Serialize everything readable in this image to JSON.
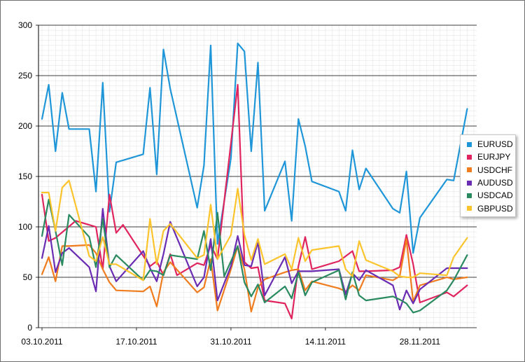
{
  "chart_data": {
    "type": "line",
    "title": "",
    "xlabel": "",
    "ylabel": "",
    "ylim": [
      0,
      300
    ],
    "yticks": [
      0,
      50,
      100,
      150,
      200,
      250,
      300
    ],
    "xticks": [
      "03.10.2011",
      "17.10.2011",
      "31.10.2011",
      "14.11.2011",
      "28.11.2011"
    ],
    "xrange": [
      "2011-10-03",
      "2011-12-06"
    ],
    "grid": true,
    "legend_position": "right",
    "series": [
      {
        "name": "EURUSD",
        "color": "#1f96d8",
        "points": [
          [
            "2011-10-03",
            207
          ],
          [
            "2011-10-04",
            241
          ],
          [
            "2011-10-05",
            175
          ],
          [
            "2011-10-06",
            233
          ],
          [
            "2011-10-07",
            197
          ],
          [
            "2011-10-10",
            197
          ],
          [
            "2011-10-11",
            135
          ],
          [
            "2011-10-12",
            243
          ],
          [
            "2011-10-13",
            115
          ],
          [
            "2011-10-14",
            164
          ],
          [
            "2011-10-18",
            172
          ],
          [
            "2011-10-19",
            238
          ],
          [
            "2011-10-20",
            152
          ],
          [
            "2011-10-21",
            276
          ],
          [
            "2011-10-22",
            237
          ],
          [
            "2011-10-26",
            119
          ],
          [
            "2011-10-27",
            161
          ],
          [
            "2011-10-28",
            280
          ],
          [
            "2011-10-29",
            83
          ],
          [
            "2011-10-31",
            168
          ],
          [
            "2011-11-01",
            282
          ],
          [
            "2011-11-02",
            274
          ],
          [
            "2011-11-03",
            175
          ],
          [
            "2011-11-04",
            263
          ],
          [
            "2011-11-05",
            116
          ],
          [
            "2011-11-08",
            165
          ],
          [
            "2011-11-09",
            106
          ],
          [
            "2011-11-10",
            207
          ],
          [
            "2011-11-11",
            180
          ],
          [
            "2011-11-12",
            145
          ],
          [
            "2011-11-16",
            135
          ],
          [
            "2011-11-17",
            116
          ],
          [
            "2011-11-18",
            176
          ],
          [
            "2011-11-19",
            137
          ],
          [
            "2011-11-20",
            158
          ],
          [
            "2011-11-24",
            118
          ],
          [
            "2011-11-25",
            114
          ],
          [
            "2011-11-26",
            155
          ],
          [
            "2011-11-27",
            74
          ],
          [
            "2011-11-28",
            109
          ],
          [
            "2011-12-02",
            147
          ],
          [
            "2011-12-03",
            146
          ],
          [
            "2011-12-05",
            217
          ]
        ]
      },
      {
        "name": "EURJPY",
        "color": "#e0245e",
        "points": [
          [
            "2011-10-03",
            132
          ],
          [
            "2011-10-04",
            86
          ],
          [
            "2011-10-05",
            89
          ],
          [
            "2011-10-08",
            106
          ],
          [
            "2011-10-11",
            100
          ],
          [
            "2011-10-12",
            58
          ],
          [
            "2011-10-13",
            132
          ],
          [
            "2011-10-14",
            94
          ],
          [
            "2011-10-15",
            102
          ],
          [
            "2011-10-19",
            61
          ],
          [
            "2011-10-20",
            66
          ],
          [
            "2011-10-21",
            52
          ],
          [
            "2011-10-22",
            73
          ],
          [
            "2011-10-23",
            52
          ],
          [
            "2011-10-26",
            64
          ],
          [
            "2011-10-27",
            62
          ],
          [
            "2011-10-28",
            82
          ],
          [
            "2011-10-29",
            68
          ],
          [
            "2011-11-01",
            241
          ],
          [
            "2011-11-02",
            65
          ],
          [
            "2011-11-03",
            59
          ],
          [
            "2011-11-04",
            60
          ],
          [
            "2011-11-05",
            27
          ],
          [
            "2011-11-08",
            24
          ],
          [
            "2011-11-09",
            9
          ],
          [
            "2011-11-10",
            61
          ],
          [
            "2011-11-11",
            90
          ],
          [
            "2011-11-12",
            58
          ],
          [
            "2011-11-16",
            66
          ],
          [
            "2011-11-18",
            76
          ],
          [
            "2011-11-19",
            56
          ],
          [
            "2011-11-20",
            56
          ],
          [
            "2011-11-24",
            57
          ],
          [
            "2011-11-25",
            60
          ],
          [
            "2011-11-26",
            92
          ],
          [
            "2011-11-27",
            63
          ],
          [
            "2011-11-28",
            25
          ],
          [
            "2011-12-02",
            35
          ],
          [
            "2011-12-03",
            31
          ],
          [
            "2011-12-05",
            42
          ]
        ]
      },
      {
        "name": "USDCHF",
        "color": "#f07c1e",
        "points": [
          [
            "2011-10-03",
            53
          ],
          [
            "2011-10-04",
            70
          ],
          [
            "2011-10-05",
            46
          ],
          [
            "2011-10-06",
            81
          ],
          [
            "2011-10-07",
            81
          ],
          [
            "2011-10-10",
            82
          ],
          [
            "2011-10-11",
            74
          ],
          [
            "2011-10-12",
            58
          ],
          [
            "2011-10-13",
            45
          ],
          [
            "2011-10-14",
            37
          ],
          [
            "2011-10-18",
            36
          ],
          [
            "2011-10-19",
            41
          ],
          [
            "2011-10-20",
            21
          ],
          [
            "2011-10-21",
            55
          ],
          [
            "2011-10-22",
            65
          ],
          [
            "2011-10-26",
            35
          ],
          [
            "2011-10-27",
            40
          ],
          [
            "2011-10-28",
            68
          ],
          [
            "2011-10-29",
            17
          ],
          [
            "2011-10-31",
            58
          ],
          [
            "2011-11-01",
            81
          ],
          [
            "2011-11-02",
            58
          ],
          [
            "2011-11-03",
            16
          ],
          [
            "2011-11-04",
            40
          ],
          [
            "2011-11-05",
            48
          ],
          [
            "2011-11-08",
            55
          ],
          [
            "2011-11-09",
            57
          ],
          [
            "2011-11-10",
            58
          ],
          [
            "2011-11-11",
            37
          ],
          [
            "2011-11-12",
            46
          ],
          [
            "2011-11-16",
            39
          ],
          [
            "2011-11-17",
            36
          ],
          [
            "2011-11-18",
            42
          ],
          [
            "2011-11-19",
            37
          ],
          [
            "2011-11-20",
            52
          ],
          [
            "2011-11-24",
            47
          ],
          [
            "2011-11-25",
            51
          ],
          [
            "2011-11-26",
            88
          ],
          [
            "2011-11-27",
            26
          ],
          [
            "2011-11-28",
            42
          ],
          [
            "2011-12-02",
            50
          ],
          [
            "2011-12-03",
            48
          ],
          [
            "2011-12-05",
            50
          ]
        ]
      },
      {
        "name": "AUDUSD",
        "color": "#6a2cb3",
        "points": [
          [
            "2011-10-03",
            69
          ],
          [
            "2011-10-04",
            101
          ],
          [
            "2011-10-05",
            55
          ],
          [
            "2011-10-06",
            74
          ],
          [
            "2011-10-07",
            79
          ],
          [
            "2011-10-10",
            60
          ],
          [
            "2011-10-11",
            36
          ],
          [
            "2011-10-12",
            118
          ],
          [
            "2011-10-13",
            61
          ],
          [
            "2011-10-14",
            46
          ],
          [
            "2011-10-18",
            76
          ],
          [
            "2011-10-19",
            59
          ],
          [
            "2011-10-20",
            46
          ],
          [
            "2011-10-21",
            73
          ],
          [
            "2011-10-22",
            105
          ],
          [
            "2011-10-26",
            41
          ],
          [
            "2011-10-27",
            50
          ],
          [
            "2011-10-28",
            88
          ],
          [
            "2011-10-29",
            27
          ],
          [
            "2011-10-31",
            61
          ],
          [
            "2011-11-01",
            91
          ],
          [
            "2011-11-02",
            62
          ],
          [
            "2011-11-03",
            61
          ],
          [
            "2011-11-04",
            85
          ],
          [
            "2011-11-05",
            32
          ],
          [
            "2011-11-08",
            70
          ],
          [
            "2011-11-09",
            44
          ],
          [
            "2011-11-10",
            56
          ],
          [
            "2011-11-11",
            56
          ],
          [
            "2011-11-12",
            56
          ],
          [
            "2011-11-16",
            58
          ],
          [
            "2011-11-17",
            33
          ],
          [
            "2011-11-18",
            54
          ],
          [
            "2011-11-19",
            47
          ],
          [
            "2011-11-20",
            57
          ],
          [
            "2011-11-24",
            42
          ],
          [
            "2011-11-25",
            18
          ],
          [
            "2011-11-26",
            37
          ],
          [
            "2011-11-27",
            24
          ],
          [
            "2011-11-28",
            38
          ],
          [
            "2011-12-02",
            59
          ],
          [
            "2011-12-03",
            59
          ],
          [
            "2011-12-05",
            59
          ]
        ]
      },
      {
        "name": "USDCAD",
        "color": "#2a8a5f",
        "points": [
          [
            "2011-10-03",
            91
          ],
          [
            "2011-10-04",
            127
          ],
          [
            "2011-10-05",
            96
          ],
          [
            "2011-10-06",
            62
          ],
          [
            "2011-10-07",
            112
          ],
          [
            "2011-10-10",
            90
          ],
          [
            "2011-10-11",
            60
          ],
          [
            "2011-10-12",
            108
          ],
          [
            "2011-10-13",
            60
          ],
          [
            "2011-10-14",
            72
          ],
          [
            "2011-10-18",
            47
          ],
          [
            "2011-10-19",
            57
          ],
          [
            "2011-10-20",
            56
          ],
          [
            "2011-10-21",
            52
          ],
          [
            "2011-10-22",
            72
          ],
          [
            "2011-10-26",
            68
          ],
          [
            "2011-10-27",
            96
          ],
          [
            "2011-10-28",
            57
          ],
          [
            "2011-10-29",
            114
          ],
          [
            "2011-10-30",
            51
          ],
          [
            "2011-11-01",
            81
          ],
          [
            "2011-11-02",
            45
          ],
          [
            "2011-11-03",
            31
          ],
          [
            "2011-11-04",
            43
          ],
          [
            "2011-11-05",
            25
          ],
          [
            "2011-11-08",
            41
          ],
          [
            "2011-11-09",
            29
          ],
          [
            "2011-11-10",
            55
          ],
          [
            "2011-11-11",
            32
          ],
          [
            "2011-11-12",
            45
          ],
          [
            "2011-11-16",
            57
          ],
          [
            "2011-11-17",
            28
          ],
          [
            "2011-11-18",
            55
          ],
          [
            "2011-11-19",
            32
          ],
          [
            "2011-11-20",
            27
          ],
          [
            "2011-11-24",
            31
          ],
          [
            "2011-11-25",
            28
          ],
          [
            "2011-11-26",
            24
          ],
          [
            "2011-11-27",
            15
          ],
          [
            "2011-11-28",
            17
          ],
          [
            "2011-12-02",
            37
          ],
          [
            "2011-12-03",
            47
          ],
          [
            "2011-12-05",
            72
          ]
        ]
      },
      {
        "name": "GBPUSD",
        "color": "#fbc42d",
        "points": [
          [
            "2011-10-03",
            134
          ],
          [
            "2011-10-04",
            134
          ],
          [
            "2011-10-05",
            96
          ],
          [
            "2011-10-06",
            139
          ],
          [
            "2011-10-07",
            146
          ],
          [
            "2011-10-10",
            71
          ],
          [
            "2011-10-11",
            66
          ],
          [
            "2011-10-12",
            90
          ],
          [
            "2011-10-13",
            63
          ],
          [
            "2011-10-14",
            63
          ],
          [
            "2011-10-18",
            47
          ],
          [
            "2011-10-19",
            108
          ],
          [
            "2011-10-20",
            63
          ],
          [
            "2011-10-21",
            96
          ],
          [
            "2011-10-22",
            103
          ],
          [
            "2011-10-26",
            69
          ],
          [
            "2011-10-27",
            72
          ],
          [
            "2011-10-28",
            122
          ],
          [
            "2011-10-29",
            68
          ],
          [
            "2011-10-31",
            92
          ],
          [
            "2011-11-01",
            138
          ],
          [
            "2011-11-02",
            92
          ],
          [
            "2011-11-03",
            67
          ],
          [
            "2011-11-04",
            88
          ],
          [
            "2011-11-05",
            63
          ],
          [
            "2011-11-08",
            73
          ],
          [
            "2011-11-09",
            58
          ],
          [
            "2011-11-10",
            89
          ],
          [
            "2011-11-11",
            66
          ],
          [
            "2011-11-12",
            77
          ],
          [
            "2011-11-16",
            81
          ],
          [
            "2011-11-17",
            58
          ],
          [
            "2011-11-18",
            51
          ],
          [
            "2011-11-19",
            86
          ],
          [
            "2011-11-20",
            67
          ],
          [
            "2011-11-24",
            56
          ],
          [
            "2011-11-25",
            51
          ],
          [
            "2011-11-26",
            50
          ],
          [
            "2011-11-27",
            50
          ],
          [
            "2011-11-28",
            54
          ],
          [
            "2011-12-02",
            52
          ],
          [
            "2011-12-03",
            70
          ],
          [
            "2011-12-05",
            89
          ]
        ]
      }
    ]
  }
}
